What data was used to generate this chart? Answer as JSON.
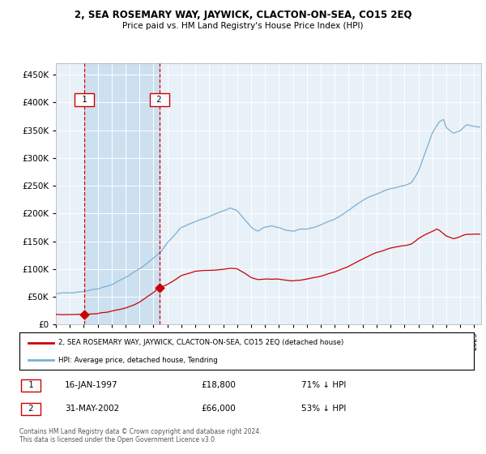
{
  "title": "2, SEA ROSEMARY WAY, JAYWICK, CLACTON-ON-SEA, CO15 2EQ",
  "subtitle": "Price paid vs. HM Land Registry's House Price Index (HPI)",
  "legend_line1": "2, SEA ROSEMARY WAY, JAYWICK, CLACTON-ON-SEA, CO15 2EQ (detached house)",
  "legend_line2": "HPI: Average price, detached house, Tendring",
  "purchase1_date": "16-JAN-1997",
  "purchase1_price": 18800,
  "purchase1_label": "71% ↓ HPI",
  "purchase2_date": "31-MAY-2002",
  "purchase2_price": 66000,
  "purchase2_label": "53% ↓ HPI",
  "footnote": "Contains HM Land Registry data © Crown copyright and database right 2024.\nThis data is licensed under the Open Government Licence v3.0.",
  "hpi_color": "#7bafd4",
  "price_color": "#cc0000",
  "vline_color": "#cc0000",
  "shade_color": "#cce0f0",
  "background_color": "#e8f0f8",
  "ylim": [
    0,
    470000
  ],
  "yticks": [
    0,
    50000,
    100000,
    150000,
    200000,
    250000,
    300000,
    350000,
    400000,
    450000
  ],
  "xmin": 1995.0,
  "xmax": 2025.5,
  "purchase1_x": 1997.04,
  "purchase2_x": 2002.42
}
